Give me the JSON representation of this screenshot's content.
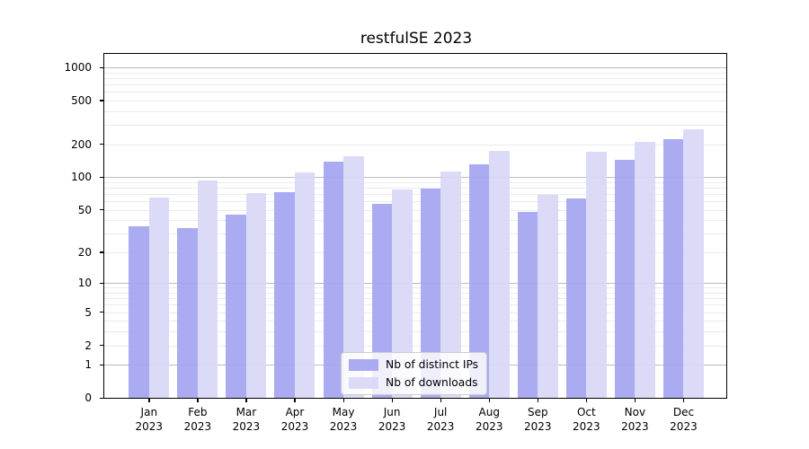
{
  "title": "restfulSE 2023",
  "legend": {
    "items": [
      {
        "label": "Nb of distinct IPs",
        "color": "#a5a5f0"
      },
      {
        "label": "Nb of downloads",
        "color": "#d8d8f8"
      }
    ]
  },
  "chart_data": {
    "type": "bar",
    "title": "restfulSE 2023",
    "categories": [
      "Jan",
      "Feb",
      "Mar",
      "Apr",
      "May",
      "Jun",
      "Jul",
      "Aug",
      "Sep",
      "Oct",
      "Nov",
      "Dec"
    ],
    "x_year": "2023",
    "series": [
      {
        "name": "Nb of distinct IPs",
        "color": "#a5a5f0",
        "values": [
          35,
          34,
          45,
          73,
          139,
          57,
          79,
          131,
          48,
          64,
          145,
          223
        ]
      },
      {
        "name": "Nb of downloads",
        "color": "#d8d8f8",
        "values": [
          65,
          94,
          71,
          110,
          154,
          77,
          112,
          173,
          69,
          171,
          210,
          275
        ]
      }
    ],
    "y_scale": "log1p",
    "y_ticks": [
      0,
      1,
      2,
      5,
      10,
      20,
      50,
      100,
      200,
      500,
      1000
    ],
    "ylim": [
      0,
      1300
    ],
    "xlabel": "",
    "ylabel": "",
    "grid": {
      "major": [
        1,
        10,
        100,
        1000
      ],
      "minor_per_decade": [
        2,
        3,
        4,
        5,
        6,
        7,
        8,
        9
      ]
    },
    "legend_position": "lower center"
  }
}
